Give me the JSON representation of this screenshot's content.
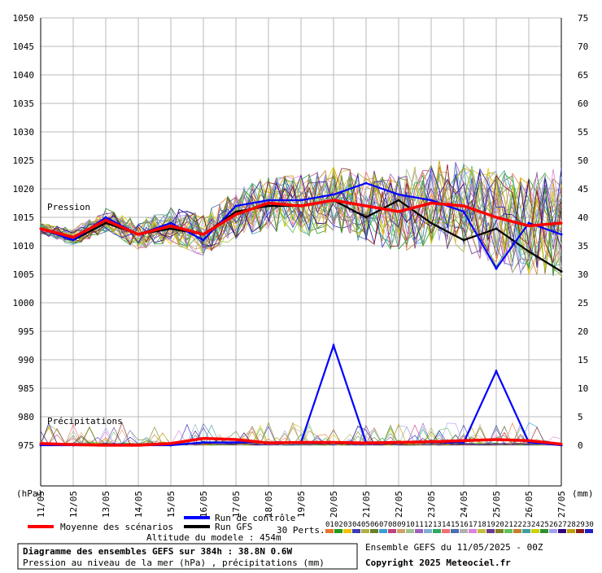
{
  "chart_data": {
    "type": "line",
    "x_dates": [
      "11/05",
      "12/05",
      "13/05",
      "14/05",
      "15/05",
      "16/05",
      "17/05",
      "18/05",
      "19/05",
      "20/05",
      "21/05",
      "22/05",
      "23/05",
      "24/05",
      "25/05",
      "26/05",
      "27/05"
    ],
    "left_axis": {
      "unit": "(hPa)",
      "ticks": [
        1050,
        1045,
        1040,
        1035,
        1030,
        1025,
        1020,
        1015,
        1010,
        1005,
        1000,
        995,
        990,
        985,
        980,
        975
      ],
      "range": [
        975,
        1050
      ]
    },
    "right_axis": {
      "unit": "(mm)",
      "ticks": [
        75,
        70,
        65,
        60,
        55,
        50,
        45,
        40,
        35,
        30,
        25,
        20,
        15,
        10,
        5,
        0
      ],
      "range": [
        0,
        75
      ]
    },
    "annotations": {
      "pression": "Pression",
      "precipitations": "Précipitations"
    },
    "series": [
      {
        "name": "Moyenne des scénarios",
        "color": "#ff0000",
        "kind": "pressure",
        "values": [
          1013,
          1011.5,
          1014.5,
          1012,
          1013.5,
          1012,
          1015.5,
          1017.5,
          1017,
          1018,
          1017,
          1016,
          1017.5,
          1017,
          1015,
          1013.5,
          1014
        ]
      },
      {
        "name": "Run de contrôle",
        "color": "#0000ff",
        "kind": "pressure",
        "values": [
          1013,
          1011,
          1015,
          1012,
          1014,
          1011,
          1017,
          1018,
          1018,
          1019,
          1021,
          1019,
          1018,
          1016,
          1006,
          1014,
          1012
        ]
      },
      {
        "name": "Run GFS",
        "color": "#000000",
        "kind": "pressure",
        "values": [
          1013,
          1011,
          1014,
          1012,
          1013,
          1012,
          1016,
          1017,
          1017,
          1018,
          1015,
          1018,
          1014,
          1011,
          1013,
          1009,
          1005.5
        ]
      },
      {
        "name": "Run de contrôle",
        "color": "#0000ff",
        "kind": "precip",
        "values": [
          0,
          0,
          0,
          0,
          0,
          0.5,
          0.5,
          0.5,
          0.5,
          17.5,
          0.5,
          0.5,
          0.5,
          0.5,
          13,
          0.5,
          0
        ]
      },
      {
        "name": "Moyenne des scénarios",
        "color": "#ff0000",
        "kind": "precip",
        "values": [
          0.3,
          0.1,
          0,
          0,
          0.3,
          1.2,
          1,
          0.4,
          0.5,
          0.5,
          0.4,
          0.5,
          0.6,
          0.8,
          1,
          0.8,
          0.2
        ]
      }
    ],
    "ensemble_count": 30
  },
  "legend": {
    "mean": "Moyenne des scénarios",
    "control": "Run de contrôle",
    "gfs": "Run GFS",
    "perts": "30 Perts.",
    "altitude": "Altitude du modele : 454m",
    "pert_labels": [
      "01",
      "02",
      "03",
      "04",
      "05",
      "06",
      "07",
      "08",
      "09",
      "10",
      "11",
      "12",
      "13",
      "14",
      "15",
      "16",
      "17",
      "18",
      "19",
      "20",
      "21",
      "22",
      "23",
      "24",
      "25",
      "26",
      "27",
      "28",
      "29",
      "30"
    ],
    "pert_colors": [
      "#e8742a",
      "#1f9b1f",
      "#f2c200",
      "#3b3bb5",
      "#b0b04a",
      "#6b7f2a",
      "#3aa0d0",
      "#c04080",
      "#cfa070",
      "#9bc38a",
      "#a060c0",
      "#7fb0d0",
      "#2fa860",
      "#f07070",
      "#4a6fb0",
      "#b0b0b0",
      "#e080e0",
      "#c0c040",
      "#6a3a8a",
      "#808020",
      "#60c060",
      "#c08030",
      "#40a0a0",
      "#d0d000",
      "#2f8f2f",
      "#a0a0f0",
      "#300080",
      "#c0a000",
      "#8b1a1a",
      "#2020c0"
    ]
  },
  "footer": {
    "title": "Diagramme des ensembles GEFS sur 384h : 38.8N 0.6W",
    "subtitle": "Pression au niveau de la mer (hPa) , précipitations (mm)",
    "run": "Ensemble GEFS du 11/05/2025 - 00Z",
    "copyright": "Copyright 2025 Meteociel.fr"
  }
}
